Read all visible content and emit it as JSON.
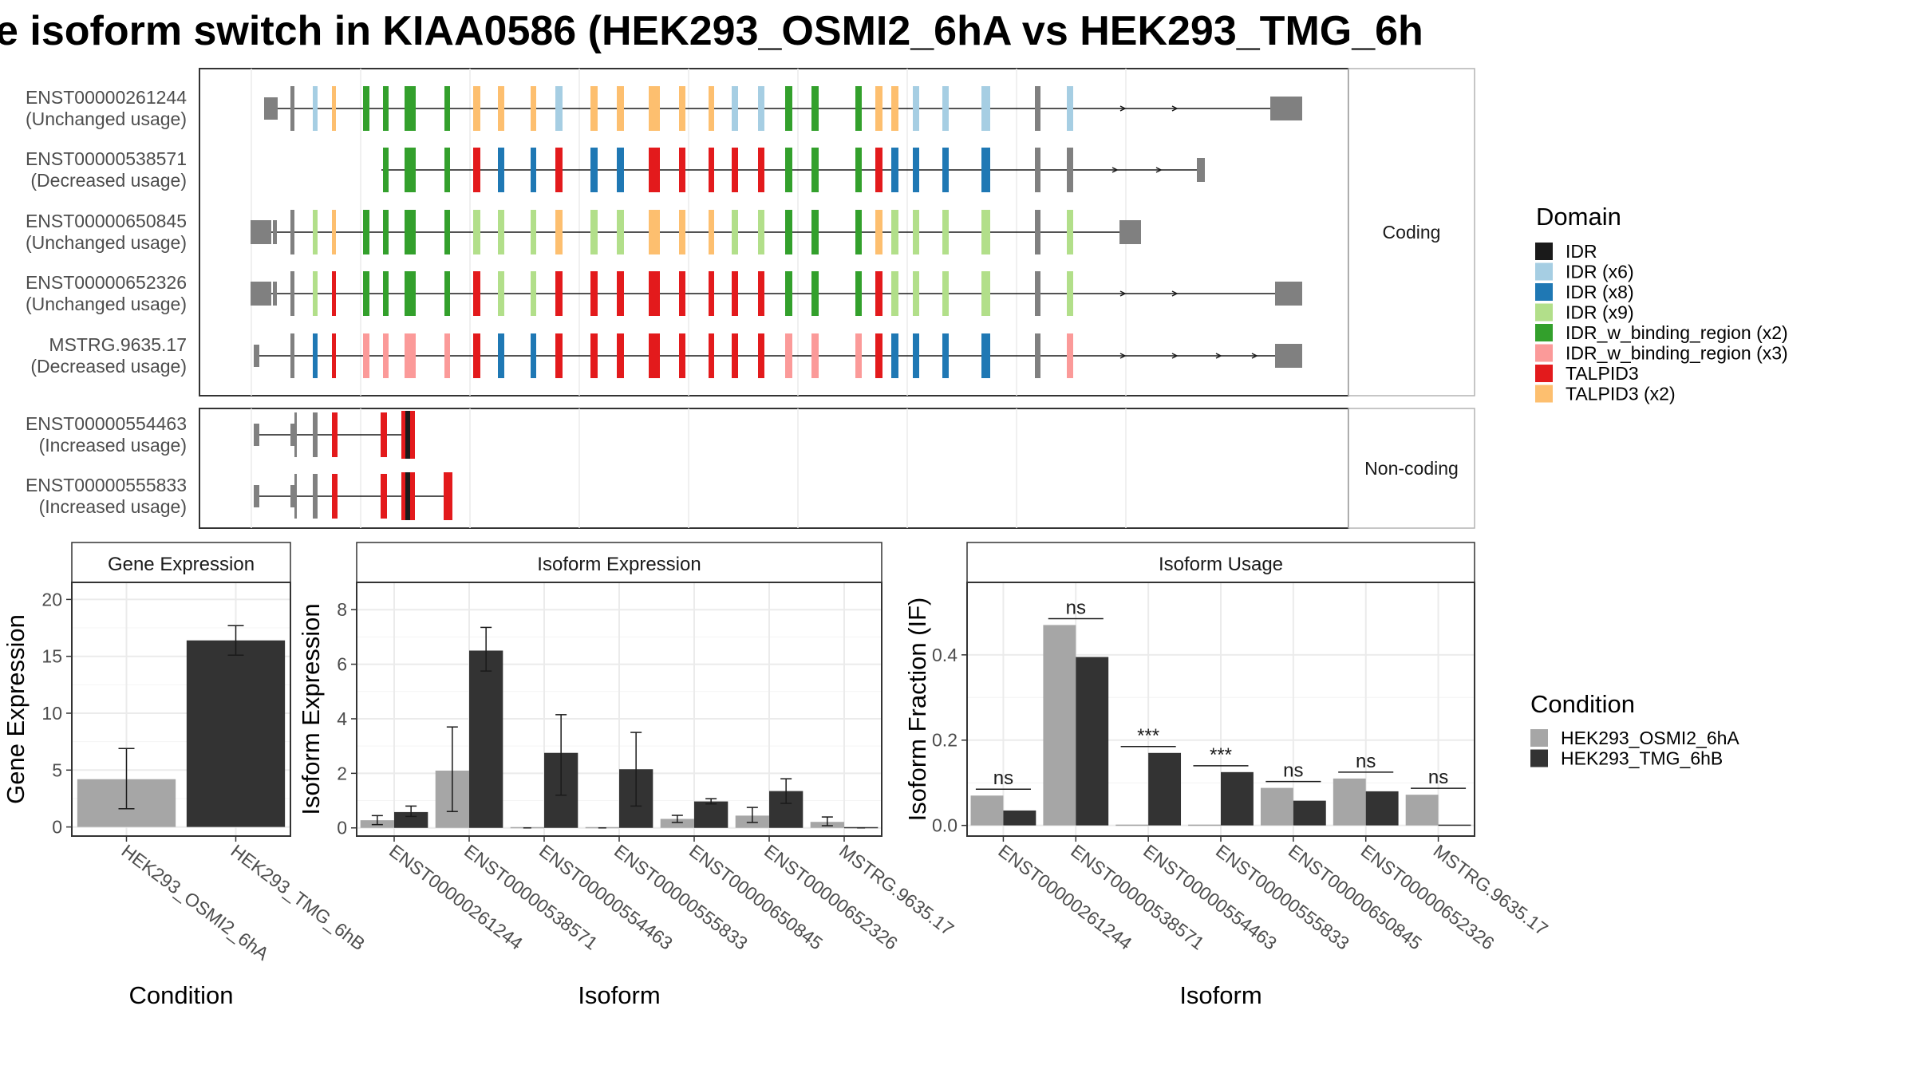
{
  "title": "e isoform switch in KIAA0586 (HEK293_OSMI2_6hA vs HEK293_TMG_6h",
  "colors": {
    "exon_default": "#808080",
    "IDR": "#1a1a1a",
    "IDR (x6)": "#a6cee3",
    "IDR (x8)": "#1f78b4",
    "IDR (x9)": "#b2df8a",
    "IDR_w_binding_region (x2)": "#33a02c",
    "IDR_w_binding_region (x3)": "#fb9a99",
    "TALPID3": "#e31a1c",
    "TALPID3 (x2)": "#fdbf6f",
    "cond_a": "#a6a6a6",
    "cond_b": "#333333",
    "strip_bg": "#ffffff",
    "grid": "#ebebeb",
    "panel_border": "#333333"
  },
  "facets": {
    "coding": "Coding",
    "noncoding": "Non-coding"
  },
  "legends": {
    "domain_title": "Domain",
    "domain_items": [
      "IDR",
      "IDR (x6)",
      "IDR (x8)",
      "IDR (x9)",
      "IDR_w_binding_region (x2)",
      "IDR_w_binding_region (x3)",
      "TALPID3",
      "TALPID3 (x2)"
    ],
    "condition_title": "Condition",
    "condition_items": [
      "HEK293_OSMI2_6hA",
      "HEK293_TMG_6hB"
    ]
  },
  "transcripts": {
    "coding": [
      {
        "id": "ENST00000261244",
        "usage": "(Unchanged usage)"
      },
      {
        "id": "ENST00000538571",
        "usage": "(Decreased usage)"
      },
      {
        "id": "ENST00000650845",
        "usage": "(Unchanged usage)"
      },
      {
        "id": "ENST00000652326",
        "usage": "(Unchanged usage)"
      },
      {
        "id": "MSTRG.9635.17",
        "usage": "(Decreased usage)"
      }
    ],
    "noncoding": [
      {
        "id": "ENST00000554463",
        "usage": "(Increased usage)"
      },
      {
        "id": "ENST00000555833",
        "usage": "(Increased usage)"
      }
    ]
  },
  "chart_data": [
    {
      "type": "bar",
      "title": "Gene Expression",
      "xlabel": "Condition",
      "ylabel": "Gene Expression",
      "categories": [
        "HEK293_OSMI2_6hA",
        "HEK293_TMG_6hB"
      ],
      "values": [
        4.2,
        16.4
      ],
      "error_low": [
        1.6,
        15.1
      ],
      "error_high": [
        6.9,
        17.7
      ],
      "ylim": [
        -0.8,
        21.5
      ],
      "yticks": [
        0,
        5,
        10,
        15,
        20
      ]
    },
    {
      "type": "bar",
      "title": "Isoform Expression",
      "xlabel": "Isoform",
      "ylabel": "Isoform Expression",
      "categories": [
        "ENST00000261244",
        "ENST00000538571",
        "ENST00000554463",
        "ENST00000555833",
        "ENST00000650845",
        "ENST00000652326",
        "MSTRG.9635.17"
      ],
      "series": [
        {
          "name": "HEK293_OSMI2_6hA",
          "values": [
            0.28,
            2.1,
            0.0,
            0.0,
            0.33,
            0.45,
            0.22
          ],
          "error_low": [
            0.12,
            0.6,
            0.0,
            0.0,
            0.2,
            0.2,
            0.08
          ],
          "error_high": [
            0.45,
            3.7,
            0.0,
            0.0,
            0.46,
            0.75,
            0.4
          ]
        },
        {
          "name": "HEK293_TMG_6hB",
          "values": [
            0.58,
            6.5,
            2.75,
            2.15,
            0.97,
            1.35,
            0.0
          ],
          "error_low": [
            0.42,
            5.75,
            1.2,
            0.8,
            0.88,
            0.9,
            0.0
          ],
          "error_high": [
            0.8,
            7.35,
            4.15,
            3.5,
            1.07,
            1.8,
            0.0
          ]
        }
      ],
      "ylim": [
        -0.3,
        9.0
      ],
      "yticks": [
        0,
        2,
        4,
        6,
        8
      ]
    },
    {
      "type": "bar",
      "title": "Isoform Usage",
      "xlabel": "Isoform",
      "ylabel": "Isoform Fraction (IF)",
      "categories": [
        "ENST00000261244",
        "ENST00000538571",
        "ENST00000554463",
        "ENST00000555833",
        "ENST00000650845",
        "ENST00000652326",
        "MSTRG.9635.17"
      ],
      "series": [
        {
          "name": "HEK293_OSMI2_6hA",
          "values": [
            0.07,
            0.47,
            0.0,
            0.0,
            0.088,
            0.11,
            0.072
          ]
        },
        {
          "name": "HEK293_TMG_6hB",
          "values": [
            0.035,
            0.395,
            0.17,
            0.125,
            0.058,
            0.08,
            0.0
          ]
        }
      ],
      "significance": [
        "ns",
        "ns",
        "***",
        "***",
        "ns",
        "ns",
        "ns"
      ],
      "ylim": [
        -0.025,
        0.57
      ],
      "yticks": [
        0.0,
        0.2,
        0.4
      ],
      "ytick_labels": [
        "0.0",
        "0.2",
        "0.4"
      ]
    }
  ]
}
